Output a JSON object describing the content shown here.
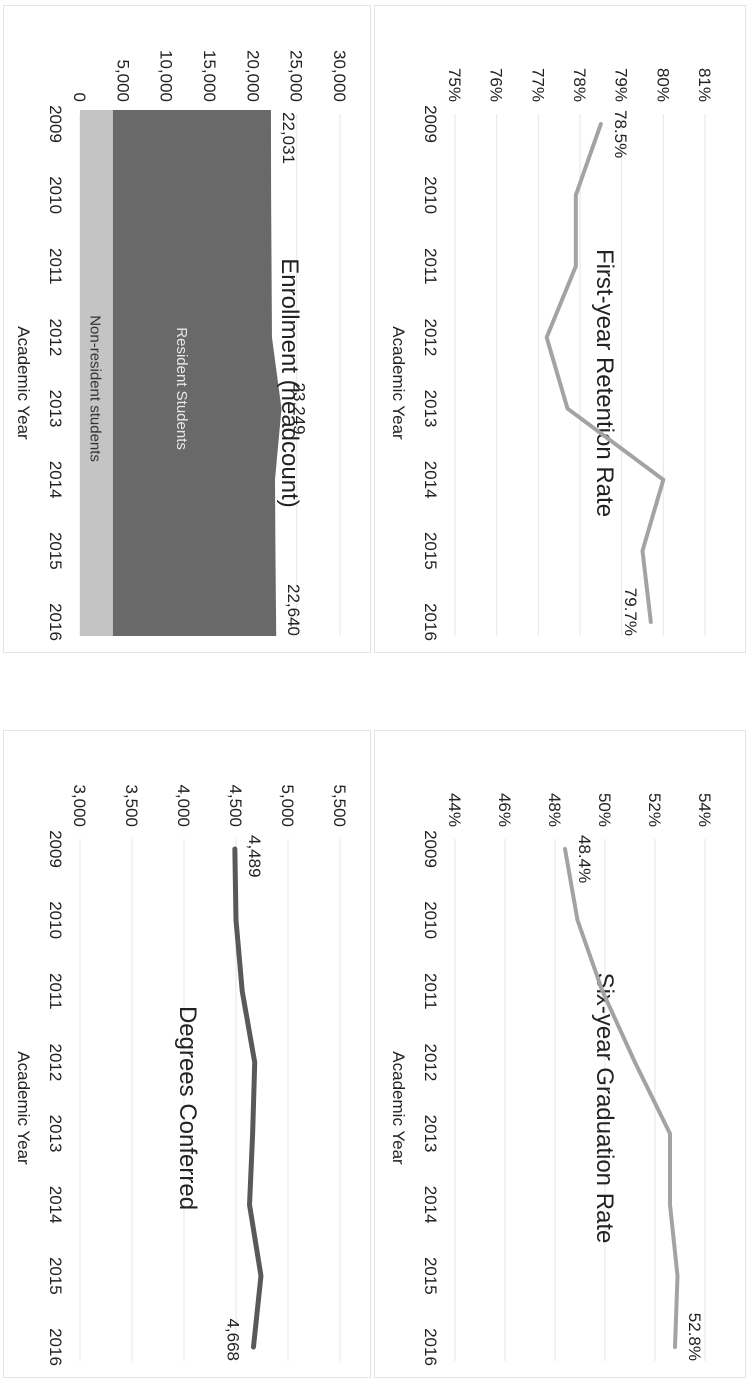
{
  "colors": {
    "line_light": "#a3a3a3",
    "line_dark": "#595959",
    "area_resident": "#696969",
    "area_nonresident": "#c4c4c4",
    "grid": "#e6e6e6"
  },
  "chart_data": [
    {
      "id": "grad",
      "type": "line",
      "title": "Six-year Graduation Rate",
      "xlabel": "Academic Year",
      "ylabel": "",
      "categories": [
        "2009",
        "2010",
        "2011",
        "2012",
        "2013",
        "2014",
        "2015",
        "2016"
      ],
      "series": [
        {
          "values": [
            48.4,
            48.9,
            49.9,
            51.2,
            52.6,
            52.6,
            52.9,
            52.8
          ]
        }
      ],
      "ylim": [
        44,
        54
      ],
      "yticks": [
        44,
        46,
        48,
        50,
        52,
        54
      ],
      "yticklabels": [
        "44%",
        "46%",
        "48%",
        "50%",
        "52%",
        "54%"
      ],
      "data_labels": [
        {
          "index": 0,
          "text": "48.4%"
        },
        {
          "index": 7,
          "text": "52.8%"
        }
      ],
      "grid": true
    },
    {
      "id": "ret",
      "type": "line",
      "title": "First-year Retention Rate",
      "xlabel": "Academic Year",
      "ylabel": "",
      "categories": [
        "2009",
        "2010",
        "2011",
        "2012",
        "2013",
        "2014",
        "2015",
        "2016"
      ],
      "series": [
        {
          "values": [
            78.5,
            77.9,
            77.9,
            77.2,
            77.7,
            80.0,
            79.5,
            79.7
          ]
        }
      ],
      "ylim": [
        75,
        81
      ],
      "yticks": [
        75,
        76,
        77,
        78,
        79,
        80,
        81
      ],
      "yticklabels": [
        "75%",
        "76%",
        "77%",
        "78%",
        "79%",
        "80%",
        "81%"
      ],
      "data_labels": [
        {
          "index": 0,
          "text": "78.5%"
        },
        {
          "index": 7,
          "text": "79.7%"
        }
      ],
      "grid": true
    },
    {
      "id": "deg",
      "type": "line",
      "title": "Degrees Conferred",
      "xlabel": "Academic Year",
      "ylabel": "",
      "categories": [
        "2009",
        "2010",
        "2011",
        "2012",
        "2013",
        "2014",
        "2015",
        "2016"
      ],
      "series": [
        {
          "values": [
            4489,
            4500,
            4560,
            4680,
            4660,
            4630,
            4740,
            4668
          ]
        }
      ],
      "ylim": [
        3000,
        5500
      ],
      "yticks": [
        3000,
        3500,
        4000,
        4500,
        5000,
        5500
      ],
      "yticklabels": [
        "3,000",
        "3,500",
        "4,000",
        "4,500",
        "5,000",
        "5,500"
      ],
      "data_labels": [
        {
          "index": 0,
          "text": "4,489"
        },
        {
          "index": 7,
          "text": "4,668"
        }
      ],
      "grid": true
    },
    {
      "id": "enr",
      "type": "area",
      "title": "Enrollment (headcount)",
      "xlabel": "Academic Year",
      "ylabel": "",
      "categories": [
        "2009",
        "2010",
        "2011",
        "2012",
        "2013",
        "2014",
        "2015",
        "2016"
      ],
      "series": [
        {
          "name": "Non-resident students",
          "values": [
            3800,
            3800,
            3800,
            3800,
            3800,
            3800,
            3800,
            3800
          ]
        },
        {
          "name": "Resident Students",
          "values": [
            18231,
            18250,
            18300,
            18350,
            19449,
            18700,
            18750,
            18840
          ]
        }
      ],
      "totals": [
        22031,
        22050,
        22100,
        22150,
        23249,
        22500,
        22550,
        22640
      ],
      "ylim": [
        0,
        30000
      ],
      "yticks": [
        0,
        5000,
        10000,
        15000,
        20000,
        25000,
        30000
      ],
      "yticklabels": [
        "0",
        "5,000",
        "10,000",
        "15,000",
        "20,000",
        "25,000",
        "30,000"
      ],
      "data_labels": [
        {
          "index": 0,
          "text": "22,031"
        },
        {
          "index": 4,
          "text": "23,249"
        },
        {
          "index": 7,
          "text": "22,640"
        }
      ],
      "grid": true
    }
  ]
}
